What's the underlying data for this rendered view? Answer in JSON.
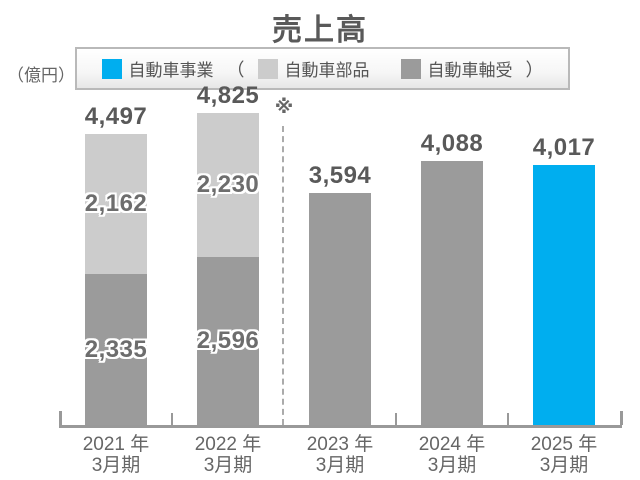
{
  "title": "売上高",
  "unit_label": "（億円）",
  "footnote_mark": "※",
  "legend": {
    "items": [
      {
        "prefix": "",
        "label": "自動車事業",
        "suffix": "",
        "color": "#00AEEF"
      },
      {
        "prefix": "（",
        "label": "自動車部品",
        "suffix": "",
        "color": "#CCCCCC"
      },
      {
        "prefix": "",
        "label": "自動車軸受",
        "suffix": "）",
        "color": "#9B9B9B"
      }
    ]
  },
  "colors": {
    "business": "#00AEEF",
    "parts": "#CCCCCC",
    "bearings": "#9B9B9B",
    "axis": "#999999",
    "title_text": "#595959",
    "value_text": "#595959",
    "axis_text": "#666666"
  },
  "chart_data": {
    "type": "bar",
    "stacked": true,
    "title": "売上高",
    "unit": "億円",
    "ylim": [
      0,
      4825
    ],
    "grid": false,
    "legend_position": "top-center",
    "categories": [
      {
        "line1": "2021 年",
        "line2": "3月期"
      },
      {
        "line1": "2022 年",
        "line2": "3月期"
      },
      {
        "line1": "2023 年",
        "line2": "3月期"
      },
      {
        "line1": "2024 年",
        "line2": "3月期"
      },
      {
        "line1": "2025 年",
        "line2": "3月期"
      }
    ],
    "bars": [
      {
        "total": 4497,
        "total_label": "4,497",
        "segments": [
          {
            "series": "自動車軸受",
            "value": 2335,
            "label": "2,335",
            "color": "#9B9B9B"
          },
          {
            "series": "自動車部品",
            "value": 2162,
            "label": "2,162",
            "color": "#CCCCCC"
          }
        ]
      },
      {
        "total": 4825,
        "total_label": "4,825",
        "segments": [
          {
            "series": "自動車軸受",
            "value": 2596,
            "label": "2,596",
            "color": "#9B9B9B"
          },
          {
            "series": "自動車部品",
            "value": 2230,
            "label": "2,230",
            "color": "#CCCCCC"
          }
        ]
      },
      {
        "total": 3594,
        "total_label": "3,594",
        "segments": [
          {
            "series": "自動車軸受",
            "value": 3594,
            "label": null,
            "color": "#9B9B9B"
          }
        ]
      },
      {
        "total": 4088,
        "total_label": "4,088",
        "segments": [
          {
            "series": "自動車軸受",
            "value": 4088,
            "label": null,
            "color": "#9B9B9B"
          }
        ]
      },
      {
        "total": 4017,
        "total_label": "4,017",
        "segments": [
          {
            "series": "自動車事業",
            "value": 4017,
            "label": null,
            "color": "#00AEEF"
          }
        ]
      }
    ],
    "divider": {
      "between": [
        "2022年3月期",
        "2023年3月期"
      ],
      "style": "dashed",
      "mark": "※"
    }
  }
}
